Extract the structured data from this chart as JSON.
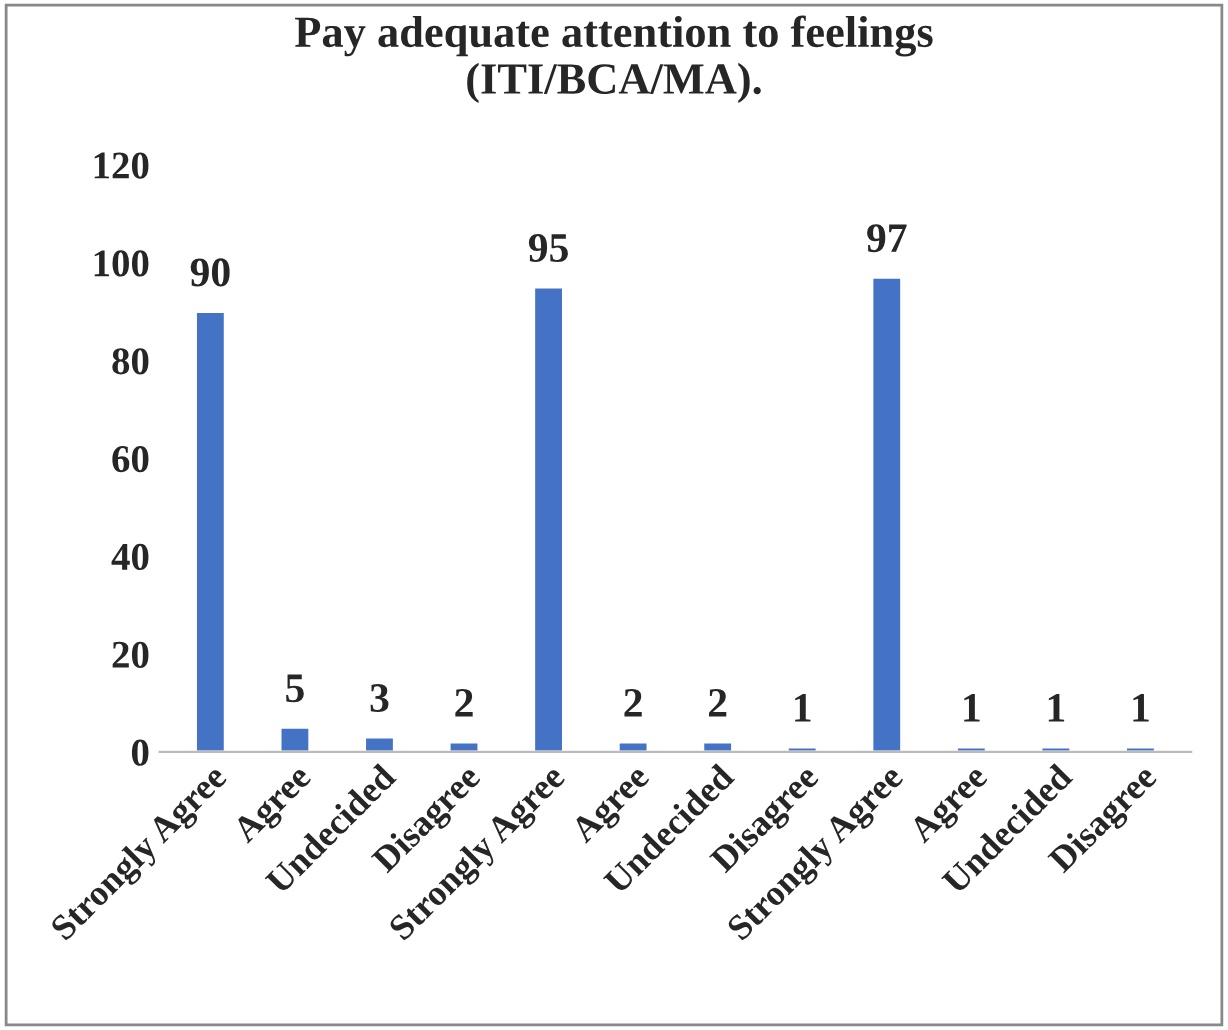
{
  "chart_data": {
    "type": "bar",
    "title": "Pay adequate attention to feelings\n(ITI/BCA/MA).",
    "categories": [
      "Strongly Agree",
      "Agree",
      "Undecided",
      "Disagree",
      "Strongly Agree",
      "Agree",
      "Undecided",
      "Disagree",
      "Strongly Agree",
      "Agree",
      "Undecided",
      "Disagree"
    ],
    "values": [
      90,
      5,
      3,
      2,
      95,
      2,
      2,
      1,
      97,
      1,
      1,
      1
    ],
    "color": "#4472c4",
    "ylim": [
      0,
      120
    ],
    "yticks": [
      0,
      20,
      40,
      60,
      80,
      100,
      120
    ],
    "grid": false,
    "data_labels": true
  }
}
